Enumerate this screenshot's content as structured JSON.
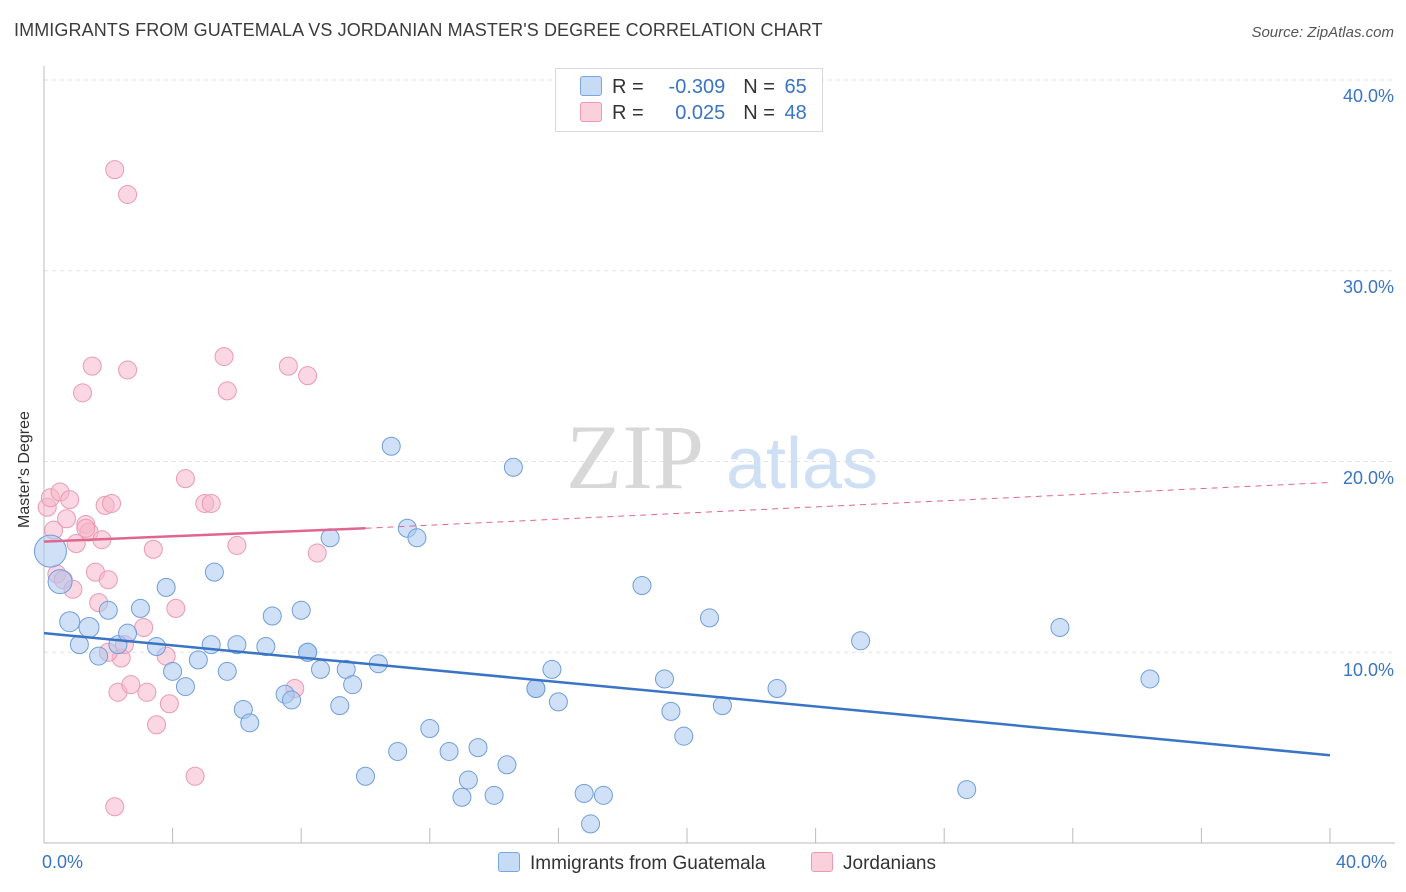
{
  "header": {
    "title": "IMMIGRANTS FROM GUATEMALA VS JORDANIAN MASTER'S DEGREE CORRELATION CHART",
    "source": "Source: ZipAtlas.com"
  },
  "watermark": {
    "zip": "ZIP",
    "atlas": "atlas"
  },
  "legend": {
    "rows": [
      {
        "r_label": "R =",
        "r_value": "-0.309",
        "n_label": "N =",
        "n_value": "65",
        "color": "#a9c8f0"
      },
      {
        "r_label": "R =",
        "r_value": "0.025",
        "n_label": "N =",
        "n_value": "48",
        "color": "#f5b6ca"
      }
    ]
  },
  "bottom_legend": [
    {
      "label": "Immigrants from Guatemala",
      "color": "#a9c8f0"
    },
    {
      "label": "Jordanians",
      "color": "#f5b6ca"
    }
  ],
  "chart_data": {
    "type": "scatter",
    "title": "IMMIGRANTS FROM GUATEMALA VS JORDANIAN MASTER'S DEGREE CORRELATION CHART",
    "xlabel": "",
    "ylabel": "Master's Degree",
    "xlim": [
      0,
      40
    ],
    "ylim": [
      0,
      40
    ],
    "x_tick_labels": [
      "0.0%",
      "40.0%"
    ],
    "y_tick_labels": [
      "10.0%",
      "20.0%",
      "30.0%",
      "40.0%"
    ],
    "y_ticks": [
      10,
      20,
      30,
      40
    ],
    "grid": true,
    "colors": {
      "blue": "#3a74c4",
      "blue_fill": "#a9c8f0",
      "pink": "#e0668e",
      "pink_fill": "#f5b6ca"
    },
    "series": [
      {
        "name": "Immigrants from Guatemala",
        "trend": {
          "x0": 0,
          "y0": 11.0,
          "x1": 40,
          "y1": 4.6,
          "dashed_from": null
        },
        "points": [
          [
            0.2,
            15.3,
            16
          ],
          [
            0.5,
            13.7,
            12
          ],
          [
            0.8,
            11.6,
            10
          ],
          [
            1.1,
            10.4,
            9
          ],
          [
            1.4,
            11.3,
            10
          ],
          [
            1.7,
            9.8,
            9
          ],
          [
            2.0,
            12.2,
            9
          ],
          [
            2.3,
            10.4,
            9
          ],
          [
            2.6,
            11.0,
            9
          ],
          [
            3.0,
            12.3,
            9
          ],
          [
            3.5,
            10.3,
            9
          ],
          [
            3.8,
            13.4,
            9
          ],
          [
            4.0,
            9.0,
            9
          ],
          [
            4.4,
            8.2,
            9
          ],
          [
            4.8,
            9.6,
            9
          ],
          [
            5.2,
            10.4,
            9
          ],
          [
            5.3,
            14.2,
            9
          ],
          [
            5.7,
            9.0,
            9
          ],
          [
            6.0,
            10.4,
            9
          ],
          [
            6.2,
            7.0,
            9
          ],
          [
            6.4,
            6.3,
            9
          ],
          [
            6.9,
            10.3,
            9
          ],
          [
            7.1,
            11.9,
            9
          ],
          [
            7.5,
            7.8,
            9
          ],
          [
            7.7,
            7.5,
            9
          ],
          [
            8.0,
            12.2,
            9
          ],
          [
            8.2,
            10.0,
            9
          ],
          [
            8.6,
            9.1,
            9
          ],
          [
            8.9,
            16.0,
            9
          ],
          [
            9.2,
            7.2,
            9
          ],
          [
            9.4,
            9.1,
            9
          ],
          [
            9.6,
            8.3,
            9
          ],
          [
            10.0,
            3.5,
            9
          ],
          [
            10.4,
            9.4,
            9
          ],
          [
            10.8,
            20.8,
            9
          ],
          [
            11.0,
            4.8,
            9
          ],
          [
            11.3,
            16.5,
            9
          ],
          [
            11.6,
            16.0,
            9
          ],
          [
            12.0,
            6.0,
            9
          ],
          [
            12.6,
            4.8,
            9
          ],
          [
            13.0,
            2.4,
            9
          ],
          [
            13.2,
            3.3,
            9
          ],
          [
            13.5,
            5.0,
            9
          ],
          [
            14.0,
            2.5,
            9
          ],
          [
            14.4,
            4.1,
            9
          ],
          [
            14.6,
            19.7,
            9
          ],
          [
            15.3,
            8.1,
            9
          ],
          [
            15.8,
            9.1,
            9
          ],
          [
            16.0,
            7.4,
            9
          ],
          [
            16.8,
            2.6,
            9
          ],
          [
            17.0,
            1.0,
            9
          ],
          [
            17.4,
            2.5,
            9
          ],
          [
            18.6,
            13.5,
            9
          ],
          [
            19.3,
            8.6,
            9
          ],
          [
            19.5,
            6.9,
            9
          ],
          [
            19.9,
            5.6,
            9
          ],
          [
            20.7,
            11.8,
            9
          ],
          [
            21.1,
            7.2,
            9
          ],
          [
            22.8,
            8.1,
            9
          ],
          [
            25.4,
            10.6,
            9
          ],
          [
            28.7,
            2.8,
            9
          ],
          [
            31.6,
            11.3,
            9
          ],
          [
            34.4,
            8.6,
            9
          ],
          [
            15.3,
            8.1,
            9
          ],
          [
            8.2,
            10.0,
            9
          ]
        ]
      },
      {
        "name": "Jordanians",
        "trend": {
          "x0": 0,
          "y0": 15.8,
          "x1": 10.0,
          "y1": 16.5,
          "dashed_to_x": 40,
          "dashed_to_y": 18.9
        },
        "points": [
          [
            0.1,
            17.6,
            9
          ],
          [
            0.2,
            18.1,
            9
          ],
          [
            0.3,
            16.4,
            9
          ],
          [
            0.4,
            14.1,
            9
          ],
          [
            0.5,
            18.4,
            9
          ],
          [
            0.6,
            13.8,
            9
          ],
          [
            0.7,
            17.0,
            9
          ],
          [
            0.8,
            18.0,
            9
          ],
          [
            0.9,
            13.3,
            9
          ],
          [
            1.0,
            15.7,
            9
          ],
          [
            1.2,
            23.6,
            9
          ],
          [
            1.3,
            16.7,
            9
          ],
          [
            1.4,
            16.3,
            9
          ],
          [
            1.5,
            25.0,
            9
          ],
          [
            1.6,
            14.2,
            9
          ],
          [
            1.7,
            12.6,
            9
          ],
          [
            1.8,
            15.9,
            9
          ],
          [
            1.9,
            17.7,
            9
          ],
          [
            2.0,
            13.8,
            9
          ],
          [
            2.1,
            17.8,
            9
          ],
          [
            2.2,
            35.3,
            9
          ],
          [
            2.3,
            7.9,
            9
          ],
          [
            2.4,
            9.7,
            9
          ],
          [
            2.5,
            10.4,
            9
          ],
          [
            2.6,
            24.8,
            9
          ],
          [
            2.6,
            34.0,
            9
          ],
          [
            2.7,
            8.3,
            9
          ],
          [
            3.1,
            11.3,
            9
          ],
          [
            3.2,
            7.9,
            9
          ],
          [
            3.4,
            15.4,
            9
          ],
          [
            3.5,
            6.2,
            9
          ],
          [
            3.8,
            9.8,
            9
          ],
          [
            3.9,
            7.3,
            9
          ],
          [
            4.1,
            12.3,
            9
          ],
          [
            4.4,
            19.1,
            9
          ],
          [
            4.7,
            3.5,
            9
          ],
          [
            5.0,
            17.8,
            9
          ],
          [
            5.2,
            17.8,
            9
          ],
          [
            5.6,
            25.5,
            9
          ],
          [
            5.7,
            23.7,
            9
          ],
          [
            6.0,
            15.6,
            9
          ],
          [
            7.6,
            25.0,
            9
          ],
          [
            7.8,
            8.1,
            9
          ],
          [
            8.2,
            24.5,
            9
          ],
          [
            8.5,
            15.2,
            9
          ],
          [
            2.2,
            1.9,
            9
          ],
          [
            2.0,
            10.0,
            9
          ],
          [
            1.3,
            16.5,
            9
          ]
        ]
      }
    ]
  }
}
